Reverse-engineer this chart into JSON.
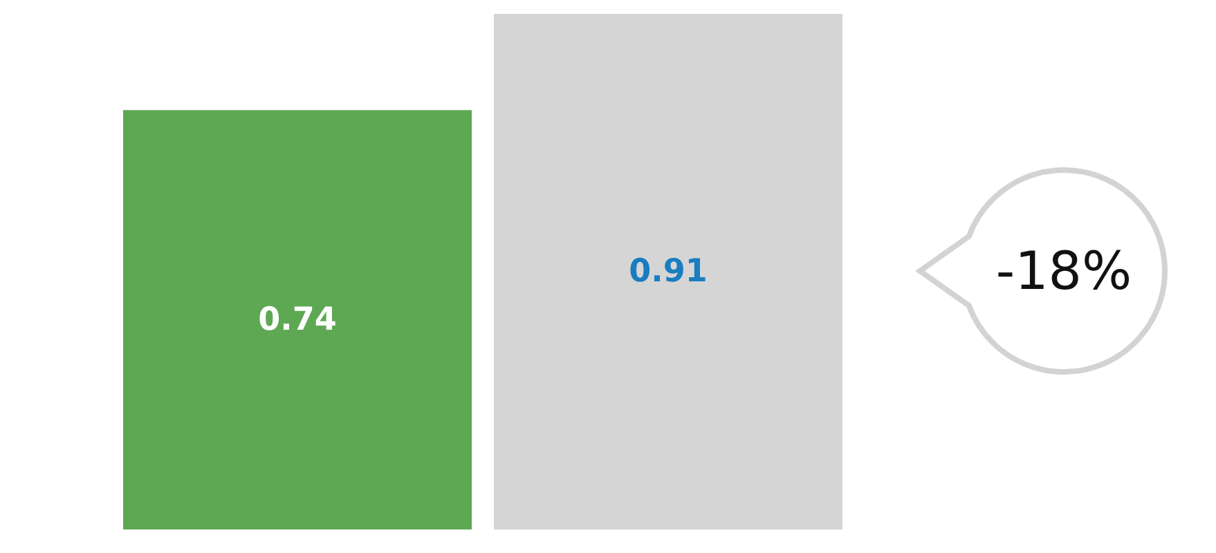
{
  "chart_data": {
    "type": "bar",
    "categories": [
      null,
      null
    ],
    "values": [
      0.74,
      0.91
    ],
    "colors": [
      "#5ea854",
      "#d5d5d5"
    ],
    "data_labels": true,
    "tick_labels": false,
    "annotations": [
      "-18%"
    ]
  }
}
